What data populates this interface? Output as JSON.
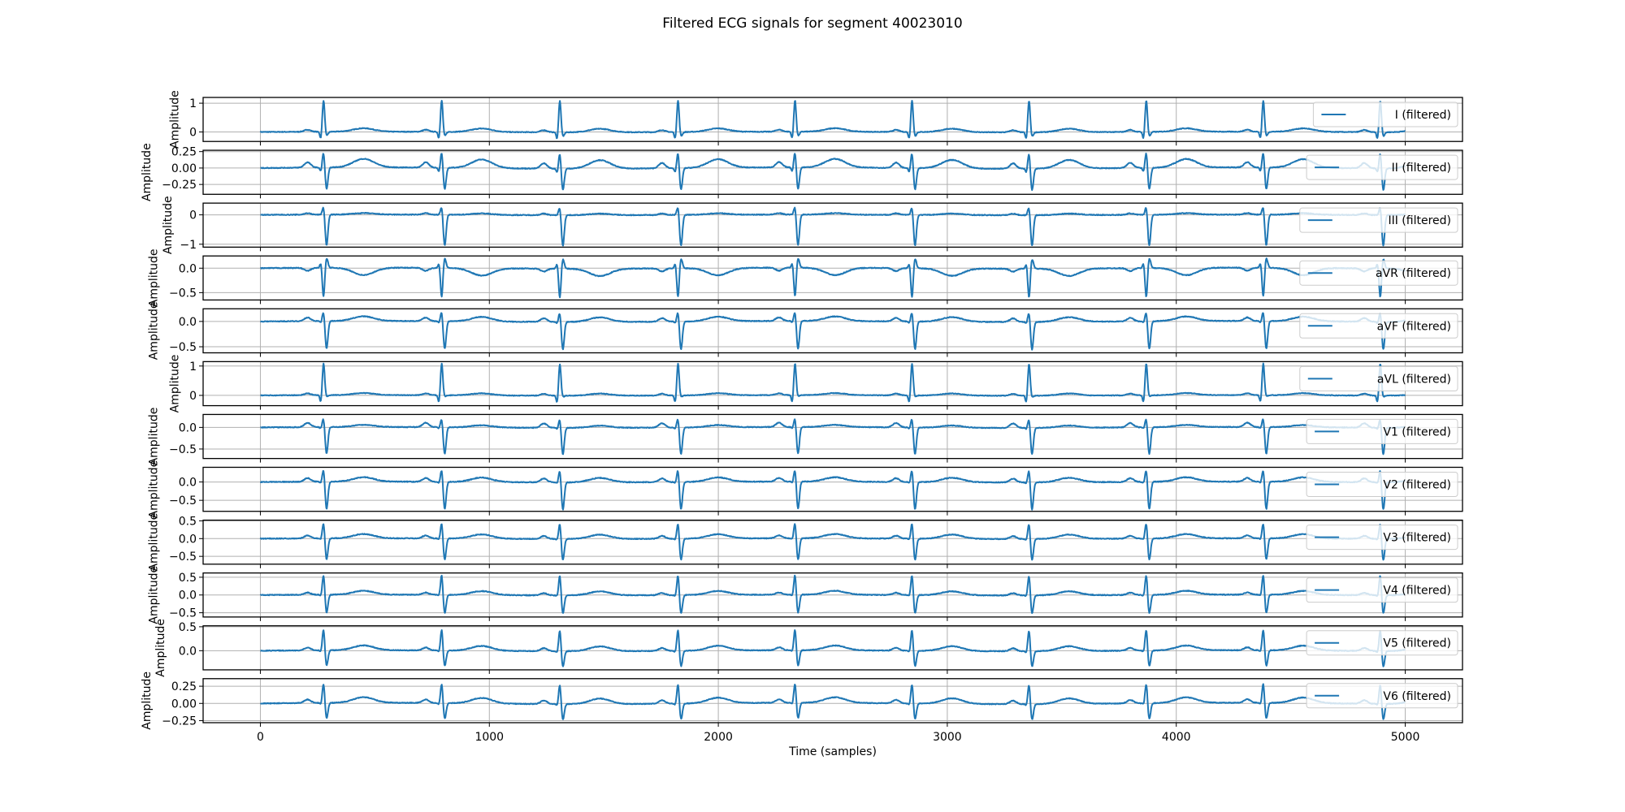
{
  "chart_data": {
    "type": "line",
    "title": "Filtered ECG signals for segment 40023010",
    "xlabel": "Time (samples)",
    "xlim": [
      -250,
      5250
    ],
    "xticks": [
      0,
      1000,
      2000,
      3000,
      4000,
      5000
    ],
    "xticklabels": [
      "0",
      "1000",
      "2000",
      "3000",
      "4000",
      "5000"
    ],
    "grid": true,
    "legend_placement": "upper-right",
    "line_color": "#1f77b4",
    "sample_range": [
      0,
      5000
    ],
    "r_peak_samples": [
      276,
      792,
      1308,
      1824,
      2335,
      2846,
      3357,
      3869,
      4380,
      4891
    ],
    "panels": [
      {
        "lead": "I",
        "legend": "I (filtered)",
        "ylabel": "Amplitude",
        "ylim": [
          -0.33,
          1.2
        ],
        "yticks": [
          0,
          1
        ],
        "yticklabels": [
          "0",
          "1"
        ],
        "wave": {
          "p": 0.07,
          "q": -0.25,
          "r": 1.1,
          "s": -0.15,
          "t": 0.12
        }
      },
      {
        "lead": "II",
        "legend": "II (filtered)",
        "ylabel": "Amplitude",
        "ylim": [
          -0.4,
          0.27
        ],
        "yticks": [
          -0.25,
          0,
          0.25
        ],
        "yticklabels": [
          "−0.25",
          "0.00",
          "0.25"
        ],
        "wave": {
          "p": 0.08,
          "q": -0.06,
          "r": 0.24,
          "s": -0.33,
          "t": 0.13
        }
      },
      {
        "lead": "III",
        "legend": "III (filtered)",
        "ylabel": "Amplitude",
        "ylim": [
          -1.1,
          0.4
        ],
        "yticks": [
          -1,
          0
        ],
        "yticklabels": [
          "−1",
          "0"
        ],
        "wave": {
          "p": 0.05,
          "q": 0.0,
          "r": 0.3,
          "s": -1.05,
          "t": 0.05
        }
      },
      {
        "lead": "aVR",
        "legend": "aVR (filtered)",
        "ylabel": "Amplitude",
        "ylim": [
          -0.65,
          0.25
        ],
        "yticks": [
          -0.5,
          0
        ],
        "yticklabels": [
          "−0.5",
          "0.0"
        ],
        "wave": {
          "p": -0.06,
          "q": 0.1,
          "r": -0.6,
          "s": 0.2,
          "t": -0.15
        }
      },
      {
        "lead": "aVF",
        "legend": "aVF (filtered)",
        "ylabel": "Amplitude",
        "ylim": [
          -0.62,
          0.25
        ],
        "yticks": [
          -0.5,
          0
        ],
        "yticklabels": [
          "−0.5",
          "0.0"
        ],
        "wave": {
          "p": 0.07,
          "q": -0.03,
          "r": 0.2,
          "s": -0.55,
          "t": 0.09
        }
      },
      {
        "lead": "aVL",
        "legend": "aVL (filtered)",
        "ylabel": "Amplitude",
        "ylim": [
          -0.35,
          1.15
        ],
        "yticks": [
          0,
          1
        ],
        "yticklabels": [
          "0",
          "1"
        ],
        "wave": {
          "p": 0.06,
          "q": -0.25,
          "r": 1.08,
          "s": -0.05,
          "t": 0.07
        }
      },
      {
        "lead": "V1",
        "legend": "V1 (filtered)",
        "ylabel": "Amplitude",
        "ylim": [
          -0.72,
          0.3
        ],
        "yticks": [
          -0.5,
          0
        ],
        "yticklabels": [
          "−0.5",
          "0.0"
        ],
        "wave": {
          "p": 0.1,
          "q": -0.03,
          "r": 0.22,
          "s": -0.62,
          "t": 0.05
        }
      },
      {
        "lead": "V2",
        "legend": "V2 (filtered)",
        "ylabel": "Amplitude",
        "ylim": [
          -0.8,
          0.4
        ],
        "yticks": [
          -0.5,
          0
        ],
        "yticklabels": [
          "−0.5",
          "0.0"
        ],
        "wave": {
          "p": 0.1,
          "q": -0.03,
          "r": 0.35,
          "s": -0.75,
          "t": 0.12
        }
      },
      {
        "lead": "V3",
        "legend": "V3 (filtered)",
        "ylabel": "Amplitude",
        "ylim": [
          -0.72,
          0.52
        ],
        "yticks": [
          -0.5,
          0,
          0.5
        ],
        "yticklabels": [
          "−0.5",
          "0.0",
          "0.5"
        ],
        "wave": {
          "p": 0.08,
          "q": -0.03,
          "r": 0.45,
          "s": -0.6,
          "t": 0.12
        }
      },
      {
        "lead": "V4",
        "legend": "V4 (filtered)",
        "ylabel": "Amplitude",
        "ylim": [
          -0.62,
          0.62
        ],
        "yticks": [
          -0.5,
          0,
          0.5
        ],
        "yticklabels": [
          "−0.5",
          "0.0",
          "0.5"
        ],
        "wave": {
          "p": 0.06,
          "q": -0.03,
          "r": 0.58,
          "s": -0.52,
          "t": 0.11
        }
      },
      {
        "lead": "V5",
        "legend": "V5 (filtered)",
        "ylabel": "Amplitude",
        "ylim": [
          -0.4,
          0.52
        ],
        "yticks": [
          0,
          0.5
        ],
        "yticklabels": [
          "0.0",
          "0.5"
        ],
        "wave": {
          "p": 0.06,
          "q": -0.03,
          "r": 0.45,
          "s": -0.33,
          "t": 0.1
        }
      },
      {
        "lead": "V6",
        "legend": "V6 (filtered)",
        "ylabel": "Amplitude",
        "ylim": [
          -0.28,
          0.36
        ],
        "yticks": [
          -0.25,
          0,
          0.25
        ],
        "yticklabels": [
          "−0.25",
          "0.00",
          "0.25"
        ],
        "wave": {
          "p": 0.05,
          "q": -0.02,
          "r": 0.29,
          "s": -0.23,
          "t": 0.08
        }
      }
    ]
  }
}
